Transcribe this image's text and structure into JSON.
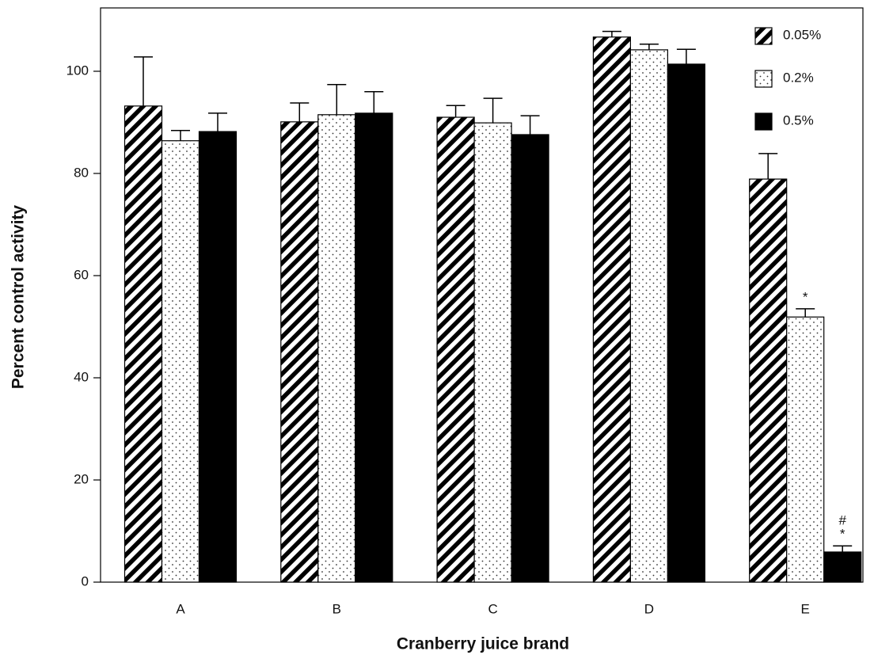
{
  "chart_data": {
    "type": "bar",
    "x_label": "Cranberry juice brand",
    "y_label": "Percent control activity",
    "categories": [
      "A",
      "B",
      "C",
      "D",
      "E"
    ],
    "ylim": [
      0,
      112.4
    ],
    "yticks": [
      0,
      20,
      40,
      60,
      80,
      100
    ],
    "legend": "top-right",
    "series": [
      {
        "name": "0.05%",
        "color": "#000000",
        "pattern": "hatch",
        "values": [
          93.2,
          90.1,
          91.0,
          106.7,
          78.9
        ],
        "errors": [
          9.6,
          3.7,
          2.3,
          1.1,
          5.0
        ],
        "annotations": [
          null,
          null,
          null,
          null,
          null
        ]
      },
      {
        "name": "0.2%",
        "color": "#000000",
        "pattern": "dots",
        "values": [
          86.4,
          91.5,
          89.9,
          104.2,
          51.9
        ],
        "errors": [
          2.0,
          5.9,
          4.8,
          1.1,
          1.6
        ],
        "annotations": [
          null,
          null,
          null,
          null,
          [
            "*"
          ]
        ]
      },
      {
        "name": "0.5%",
        "color": "#000000",
        "pattern": "solid",
        "values": [
          88.2,
          91.8,
          87.6,
          101.4,
          5.9
        ],
        "errors": [
          3.6,
          4.2,
          3.7,
          2.9,
          1.2
        ],
        "annotations": [
          null,
          null,
          null,
          null,
          [
            "#",
            "*"
          ]
        ]
      }
    ]
  }
}
